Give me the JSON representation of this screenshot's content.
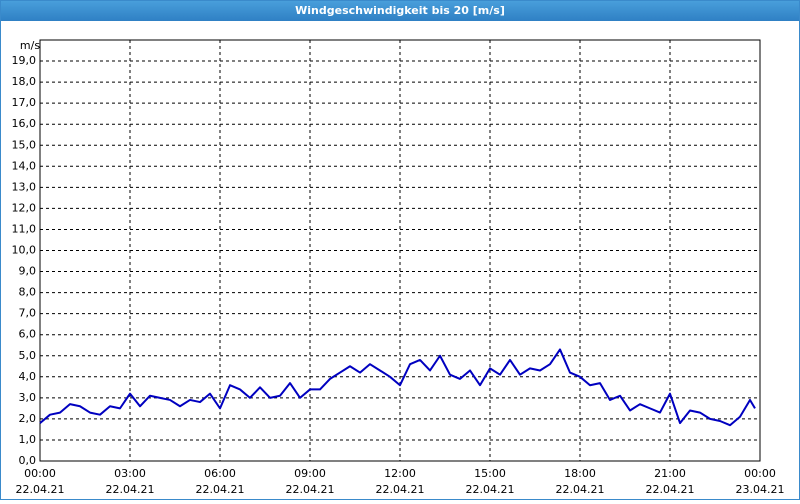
{
  "chart_data": {
    "type": "line",
    "title": "Windgeschwindigkeit bis 20 [m/s]",
    "y_label": "m/s",
    "x": [
      0,
      20,
      40,
      60,
      80,
      100,
      120,
      140,
      160,
      180,
      200,
      220,
      240,
      260,
      280,
      300,
      320,
      340,
      360,
      380,
      400,
      420,
      440,
      460,
      480,
      500,
      520,
      540,
      560,
      580,
      600,
      620,
      640,
      660,
      680,
      700,
      720,
      740,
      760,
      780,
      800,
      820,
      840,
      860,
      880,
      900,
      920,
      940,
      960,
      980,
      1000,
      1020,
      1040,
      1060,
      1080,
      1100,
      1120,
      1140,
      1160,
      1180,
      1200,
      1220,
      1240,
      1260,
      1280,
      1300,
      1320,
      1340,
      1360,
      1380,
      1400,
      1420,
      1430
    ],
    "series": [
      {
        "name": "Windgeschwindigkeit",
        "color": "#0000c0",
        "values": [
          1.8,
          2.2,
          2.3,
          2.7,
          2.6,
          2.3,
          2.2,
          2.6,
          2.5,
          3.2,
          2.6,
          3.1,
          3.0,
          2.9,
          2.6,
          2.9,
          2.8,
          3.2,
          2.5,
          3.6,
          3.4,
          3.0,
          3.5,
          3.0,
          3.1,
          3.7,
          3.0,
          3.4,
          3.4,
          3.9,
          4.2,
          4.5,
          4.2,
          4.6,
          4.3,
          4.0,
          3.6,
          4.6,
          4.8,
          4.3,
          5.0,
          4.1,
          3.9,
          4.3,
          3.6,
          4.4,
          4.1,
          4.8,
          4.1,
          4.4,
          4.3,
          4.6,
          5.3,
          4.2,
          4.0,
          3.6,
          3.7,
          2.9,
          3.1,
          2.4,
          2.7,
          2.5,
          2.3,
          3.2,
          1.8,
          2.4,
          2.3,
          2.0,
          1.9,
          1.7,
          2.1,
          2.9,
          2.5
        ]
      }
    ],
    "xlim": [
      0,
      1440
    ],
    "xticks": [
      {
        "value": 0,
        "label": "00:00",
        "date": "22.04.21"
      },
      {
        "value": 180,
        "label": "03:00",
        "date": "22.04.21"
      },
      {
        "value": 360,
        "label": "06:00",
        "date": "22.04.21"
      },
      {
        "value": 540,
        "label": "09:00",
        "date": "22.04.21"
      },
      {
        "value": 720,
        "label": "12:00",
        "date": "22.04.21"
      },
      {
        "value": 900,
        "label": "15:00",
        "date": "22.04.21"
      },
      {
        "value": 1080,
        "label": "18:00",
        "date": "22.04.21"
      },
      {
        "value": 1260,
        "label": "21:00",
        "date": "22.04.21"
      },
      {
        "value": 1440,
        "label": "00:00",
        "date": "23.04.21"
      }
    ],
    "ylim": [
      0,
      20
    ],
    "yticks": [
      {
        "value": 0,
        "label": "0,0"
      },
      {
        "value": 1,
        "label": "1,0"
      },
      {
        "value": 2,
        "label": "2,0"
      },
      {
        "value": 3,
        "label": "3,0"
      },
      {
        "value": 4,
        "label": "4,0"
      },
      {
        "value": 5,
        "label": "5,0"
      },
      {
        "value": 6,
        "label": "6,0"
      },
      {
        "value": 7,
        "label": "7,0"
      },
      {
        "value": 8,
        "label": "8,0"
      },
      {
        "value": 9,
        "label": "9,0"
      },
      {
        "value": 10,
        "label": "10,0"
      },
      {
        "value": 11,
        "label": "11,0"
      },
      {
        "value": 12,
        "label": "12,0"
      },
      {
        "value": 13,
        "label": "13,0"
      },
      {
        "value": 14,
        "label": "14,0"
      },
      {
        "value": 15,
        "label": "15,0"
      },
      {
        "value": 16,
        "label": "16,0"
      },
      {
        "value": 17,
        "label": "17,0"
      },
      {
        "value": 18,
        "label": "18,0"
      },
      {
        "value": 19,
        "label": "19,0"
      }
    ],
    "grid": true
  }
}
